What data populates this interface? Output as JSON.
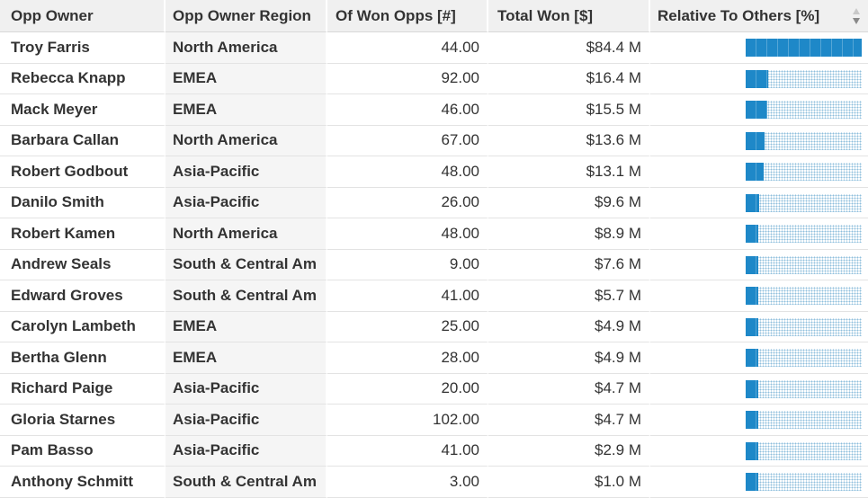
{
  "table": {
    "headers": {
      "owner": "Opp Owner",
      "region": "Opp Owner Region",
      "won_opps": "Of Won Opps [#]",
      "total_won": "Total Won [$]",
      "relative": "Relative To Others [%]"
    },
    "sort_icon": "sort-arrows-icon",
    "bar_color": "#1e88c8",
    "rows": [
      {
        "owner": "Troy Farris",
        "region": "North America",
        "won_opps": "44.00",
        "total_won": "$84.4 M",
        "relative": 1.0
      },
      {
        "owner": "Rebecca Knapp",
        "region": "EMEA",
        "won_opps": "92.00",
        "total_won": "$16.4 M",
        "relative": 0.194
      },
      {
        "owner": "Mack Meyer",
        "region": "EMEA",
        "won_opps": "46.00",
        "total_won": "$15.5 M",
        "relative": 0.184
      },
      {
        "owner": "Barbara Callan",
        "region": "North America",
        "won_opps": "67.00",
        "total_won": "$13.6 M",
        "relative": 0.161
      },
      {
        "owner": "Robert Godbout",
        "region": "Asia-Pacific",
        "won_opps": "48.00",
        "total_won": "$13.1 M",
        "relative": 0.155
      },
      {
        "owner": "Danilo Smith",
        "region": "Asia-Pacific",
        "won_opps": "26.00",
        "total_won": "$9.6 M",
        "relative": 0.114
      },
      {
        "owner": "Robert Kamen",
        "region": "North America",
        "won_opps": "48.00",
        "total_won": "$8.9 M",
        "relative": 0.105
      },
      {
        "owner": "Andrew Seals",
        "region": "South & Central Am",
        "won_opps": "9.00",
        "total_won": "$7.6 M",
        "relative": 0.09
      },
      {
        "owner": "Edward Groves",
        "region": "South & Central Am",
        "won_opps": "41.00",
        "total_won": "$5.7 M",
        "relative": 0.068
      },
      {
        "owner": "Carolyn Lambeth",
        "region": "EMEA",
        "won_opps": "25.00",
        "total_won": "$4.9 M",
        "relative": 0.058
      },
      {
        "owner": "Bertha Glenn",
        "region": "EMEA",
        "won_opps": "28.00",
        "total_won": "$4.9 M",
        "relative": 0.058
      },
      {
        "owner": "Richard Paige",
        "region": "Asia-Pacific",
        "won_opps": "20.00",
        "total_won": "$4.7 M",
        "relative": 0.056
      },
      {
        "owner": "Gloria Starnes",
        "region": "Asia-Pacific",
        "won_opps": "102.00",
        "total_won": "$4.7 M",
        "relative": 0.056
      },
      {
        "owner": "Pam Basso",
        "region": "Asia-Pacific",
        "won_opps": "41.00",
        "total_won": "$2.9 M",
        "relative": 0.034
      },
      {
        "owner": "Anthony Schmitt",
        "region": "South & Central Am",
        "won_opps": "3.00",
        "total_won": "$1.0 M",
        "relative": 0.012
      }
    ]
  }
}
